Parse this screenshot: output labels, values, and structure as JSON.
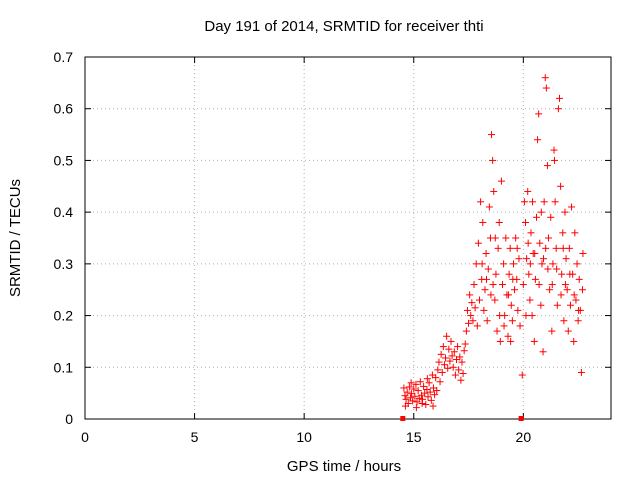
{
  "chart_data": {
    "type": "scatter",
    "title": "Day 191 of 2014, SRMTID for receiver thti",
    "xlabel": "GPS time / hours",
    "ylabel": "SRMTID / TECUs",
    "xlim": [
      0,
      24
    ],
    "ylim": [
      0,
      0.7
    ],
    "xticks": [
      0,
      5,
      10,
      15,
      20
    ],
    "yticks": [
      0,
      0.1,
      0.2,
      0.3,
      0.4,
      0.5,
      0.6,
      0.7
    ],
    "grid": true,
    "marker": "+",
    "color": "#ff0000",
    "baseline_markers": [
      14.5,
      19.9
    ],
    "series": [
      {
        "name": "SRMTID",
        "points": [
          [
            14.55,
            0.06
          ],
          [
            14.6,
            0.045
          ],
          [
            14.65,
            0.038
          ],
          [
            14.7,
            0.052
          ],
          [
            14.75,
            0.03
          ],
          [
            14.8,
            0.062
          ],
          [
            14.85,
            0.041
          ],
          [
            14.9,
            0.049
          ],
          [
            14.95,
            0.035
          ],
          [
            15.0,
            0.058
          ],
          [
            15.05,
            0.044
          ],
          [
            15.1,
            0.067
          ],
          [
            15.15,
            0.033
          ],
          [
            15.2,
            0.055
          ],
          [
            15.25,
            0.04
          ],
          [
            15.3,
            0.072
          ],
          [
            15.35,
            0.046
          ],
          [
            15.4,
            0.038
          ],
          [
            15.45,
            0.063
          ],
          [
            15.5,
            0.05
          ],
          [
            15.55,
            0.028
          ],
          [
            15.6,
            0.057
          ],
          [
            15.65,
            0.043
          ],
          [
            15.7,
            0.07
          ],
          [
            15.75,
            0.052
          ],
          [
            15.8,
            0.036
          ],
          [
            15.85,
            0.085
          ],
          [
            15.9,
            0.06
          ],
          [
            15.95,
            0.047
          ],
          [
            16.0,
            0.08
          ],
          [
            14.62,
            0.025
          ],
          [
            14.88,
            0.07
          ],
          [
            15.12,
            0.022
          ],
          [
            15.38,
            0.03
          ],
          [
            15.62,
            0.078
          ],
          [
            15.88,
            0.025
          ],
          [
            16.05,
            0.055
          ],
          [
            16.1,
            0.095
          ],
          [
            16.15,
            0.11
          ],
          [
            16.2,
            0.072
          ],
          [
            16.25,
            0.125
          ],
          [
            16.3,
            0.09
          ],
          [
            16.35,
            0.14
          ],
          [
            16.4,
            0.105
          ],
          [
            16.45,
            0.118
          ],
          [
            16.5,
            0.16
          ],
          [
            16.55,
            0.098
          ],
          [
            16.6,
            0.135
          ],
          [
            16.65,
            0.112
          ],
          [
            16.7,
            0.15
          ],
          [
            16.75,
            0.122
          ],
          [
            16.8,
            0.1
          ],
          [
            16.85,
            0.13
          ],
          [
            16.9,
            0.085
          ],
          [
            16.95,
            0.115
          ],
          [
            17.0,
            0.14
          ],
          [
            17.05,
            0.095
          ],
          [
            17.1,
            0.12
          ],
          [
            17.15,
            0.075
          ],
          [
            17.2,
            0.11
          ],
          [
            17.25,
            0.088
          ],
          [
            17.3,
            0.132
          ],
          [
            17.35,
            0.145
          ],
          [
            17.4,
            0.17
          ],
          [
            17.45,
            0.21
          ],
          [
            17.5,
            0.185
          ],
          [
            17.55,
            0.24
          ],
          [
            17.6,
            0.2
          ],
          [
            17.65,
            0.225
          ],
          [
            17.7,
            0.19
          ],
          [
            17.75,
            0.26
          ],
          [
            17.8,
            0.215
          ],
          [
            17.85,
            0.3
          ],
          [
            17.9,
            0.18
          ],
          [
            17.95,
            0.34
          ],
          [
            18.0,
            0.23
          ],
          [
            18.05,
            0.42
          ],
          [
            18.1,
            0.27
          ],
          [
            18.15,
            0.38
          ],
          [
            18.2,
            0.21
          ],
          [
            18.25,
            0.25
          ],
          [
            18.3,
            0.32
          ],
          [
            18.35,
            0.19
          ],
          [
            18.4,
            0.29
          ],
          [
            18.45,
            0.41
          ],
          [
            18.5,
            0.35
          ],
          [
            18.55,
            0.55
          ],
          [
            18.6,
            0.5
          ],
          [
            18.65,
            0.44
          ],
          [
            18.7,
            0.23
          ],
          [
            18.75,
            0.28
          ],
          [
            18.8,
            0.17
          ],
          [
            18.85,
            0.33
          ],
          [
            18.9,
            0.38
          ],
          [
            18.95,
            0.15
          ],
          [
            19.0,
            0.46
          ],
          [
            19.05,
            0.26
          ],
          [
            19.1,
            0.3
          ],
          [
            19.15,
            0.2
          ],
          [
            19.2,
            0.35
          ],
          [
            19.25,
            0.24
          ],
          [
            19.3,
            0.16
          ],
          [
            19.35,
            0.28
          ],
          [
            19.4,
            0.33
          ],
          [
            19.45,
            0.22
          ],
          [
            19.5,
            0.19
          ],
          [
            19.55,
            0.3
          ],
          [
            19.6,
            0.25
          ],
          [
            19.65,
            0.35
          ],
          [
            19.7,
            0.27
          ],
          [
            19.75,
            0.21
          ],
          [
            19.8,
            0.31
          ],
          [
            19.85,
            0.18
          ],
          [
            19.95,
            0.085
          ],
          [
            20.0,
            0.26
          ],
          [
            20.05,
            0.42
          ],
          [
            20.1,
            0.38
          ],
          [
            20.15,
            0.31
          ],
          [
            20.2,
            0.44
          ],
          [
            20.25,
            0.28
          ],
          [
            20.3,
            0.23
          ],
          [
            20.35,
            0.36
          ],
          [
            20.4,
            0.2
          ],
          [
            20.45,
            0.32
          ],
          [
            20.5,
            0.15
          ],
          [
            20.55,
            0.27
          ],
          [
            20.6,
            0.39
          ],
          [
            20.65,
            0.54
          ],
          [
            20.7,
            0.59
          ],
          [
            20.75,
            0.34
          ],
          [
            20.8,
            0.22
          ],
          [
            20.85,
            0.3
          ],
          [
            20.9,
            0.13
          ],
          [
            20.95,
            0.42
          ],
          [
            21.0,
            0.66
          ],
          [
            21.05,
            0.64
          ],
          [
            21.1,
            0.49
          ],
          [
            21.15,
            0.35
          ],
          [
            21.2,
            0.25
          ],
          [
            21.25,
            0.39
          ],
          [
            21.3,
            0.17
          ],
          [
            21.35,
            0.3
          ],
          [
            21.4,
            0.52
          ],
          [
            21.45,
            0.42
          ],
          [
            21.5,
            0.33
          ],
          [
            21.55,
            0.22
          ],
          [
            21.6,
            0.6
          ],
          [
            21.65,
            0.62
          ],
          [
            21.7,
            0.45
          ],
          [
            21.75,
            0.28
          ],
          [
            21.8,
            0.36
          ],
          [
            21.85,
            0.19
          ],
          [
            21.9,
            0.4
          ],
          [
            21.95,
            0.31
          ],
          [
            22.0,
            0.25
          ],
          [
            22.05,
            0.17
          ],
          [
            22.1,
            0.33
          ],
          [
            22.15,
            0.22
          ],
          [
            22.2,
            0.41
          ],
          [
            22.25,
            0.28
          ],
          [
            22.3,
            0.15
          ],
          [
            22.35,
            0.36
          ],
          [
            22.4,
            0.23
          ],
          [
            22.45,
            0.3
          ],
          [
            22.5,
            0.19
          ],
          [
            22.55,
            0.27
          ],
          [
            22.6,
            0.21
          ],
          [
            22.65,
            0.09
          ],
          [
            22.7,
            0.25
          ],
          [
            22.72,
            0.32
          ],
          [
            18.12,
            0.3
          ],
          [
            18.32,
            0.27
          ],
          [
            18.52,
            0.24
          ],
          [
            18.72,
            0.35
          ],
          [
            18.92,
            0.2
          ],
          [
            19.12,
            0.18
          ],
          [
            19.32,
            0.24
          ],
          [
            19.52,
            0.27
          ],
          [
            19.72,
            0.33
          ],
          [
            20.12,
            0.2
          ],
          [
            20.32,
            0.3
          ],
          [
            20.52,
            0.32
          ],
          [
            20.72,
            0.26
          ],
          [
            20.92,
            0.31
          ],
          [
            21.12,
            0.29
          ],
          [
            21.32,
            0.26
          ],
          [
            21.52,
            0.29
          ],
          [
            21.72,
            0.24
          ],
          [
            21.92,
            0.26
          ],
          [
            22.12,
            0.28
          ],
          [
            22.32,
            0.24
          ],
          [
            22.52,
            0.21
          ],
          [
            20.42,
            0.42
          ],
          [
            21.42,
            0.5
          ],
          [
            20.82,
            0.4
          ],
          [
            21.82,
            0.33
          ],
          [
            18.62,
            0.26
          ],
          [
            19.42,
            0.15
          ],
          [
            21.02,
            0.33
          ],
          [
            20.22,
            0.34
          ]
        ]
      }
    ]
  }
}
